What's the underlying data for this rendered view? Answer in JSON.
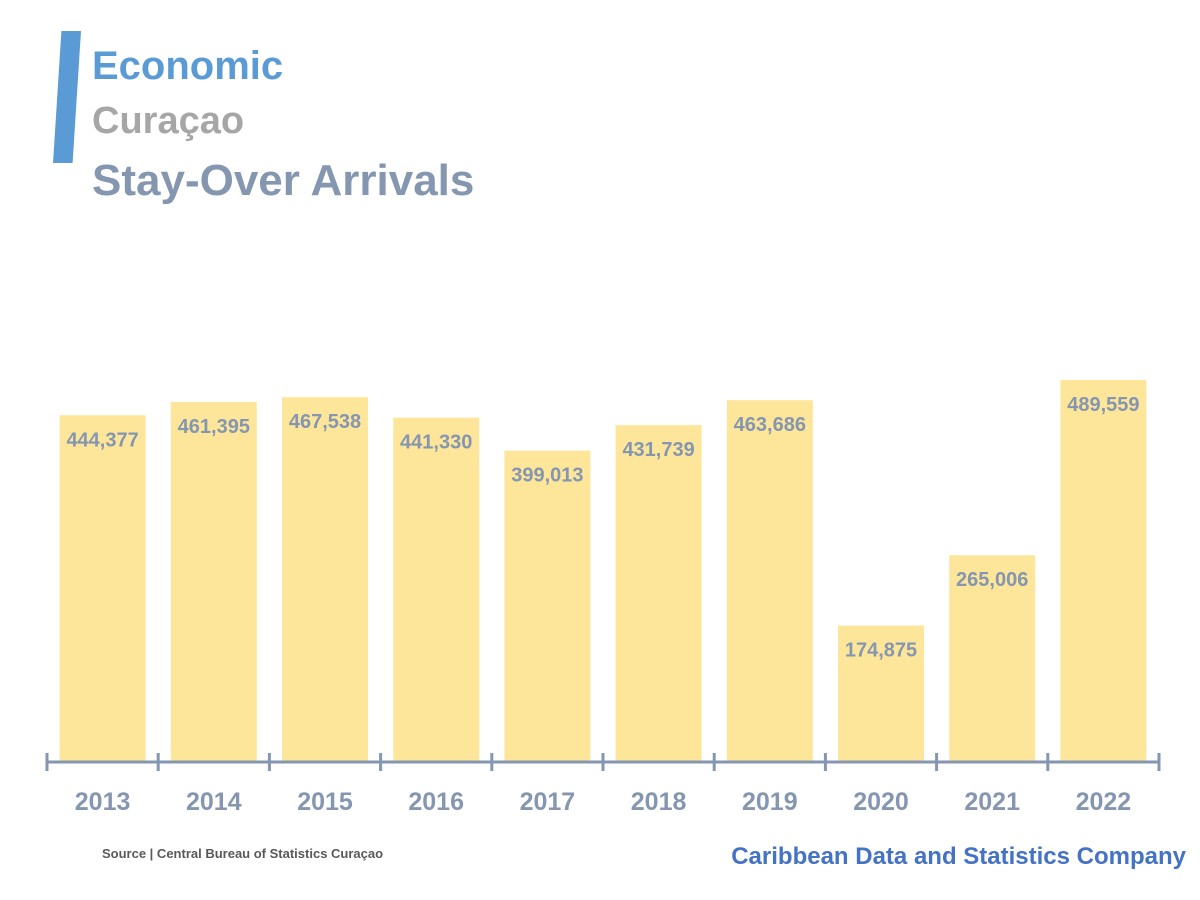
{
  "header": {
    "category": "Economic",
    "country": "Curaçao",
    "title": "Stay-Over Arrivals"
  },
  "footer": {
    "source": "Source | Central Bureau of Statistics Curaçao",
    "company": "Caribbean Data and Statistics Company"
  },
  "colors": {
    "accent": "#5b9bd5",
    "bar": "#fde59a",
    "axis": "#8496b0",
    "label": "#8496b0"
  },
  "chart_data": {
    "type": "bar",
    "title": "Stay-Over Arrivals",
    "xlabel": "",
    "ylabel": "",
    "categories": [
      "2013",
      "2014",
      "2015",
      "2016",
      "2017",
      "2018",
      "2019",
      "2020",
      "2021",
      "2022"
    ],
    "values": [
      444377,
      461395,
      467538,
      441330,
      399013,
      431739,
      463686,
      174875,
      265006,
      489559
    ],
    "value_labels": [
      "444,377",
      "461,395",
      "467,538",
      "441,330",
      "399,013",
      "431,739",
      "463,686",
      "174,875",
      "265,006",
      "489,559"
    ],
    "ylim": [
      0,
      489559
    ],
    "grid": false,
    "legend": "none"
  }
}
